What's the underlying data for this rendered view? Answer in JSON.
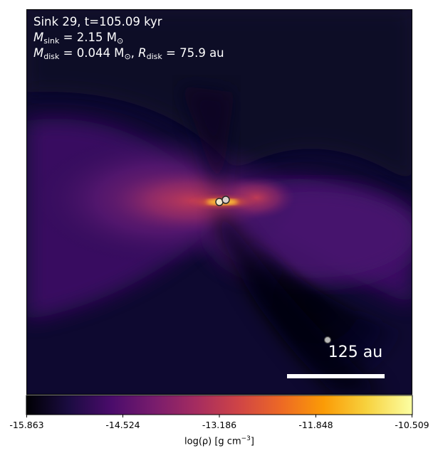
{
  "panel": {
    "title": "Sink 29, t=105.09 kyr",
    "sink_mass_symbol": "M",
    "sink_mass_sub": "sink",
    "sink_mass_value": " = 2.15 M",
    "sink_mass_unit_sub": "⊙",
    "disk_mass_symbol": "M",
    "disk_mass_sub": "disk",
    "disk_mass_value": " = 0.044 M",
    "disk_mass_unit_sub": "⊙",
    "disk_sep": ", ",
    "disk_radius_symbol": "R",
    "disk_radius_sub": "disk",
    "disk_radius_value": " = 75.9 au"
  },
  "scale_bar": {
    "label": "125 au"
  },
  "colorbar": {
    "tick_labels": [
      "-15.863",
      "-14.524",
      "-13.186",
      "-11.848",
      "-10.509"
    ],
    "label_main": "log(ρ) [g cm",
    "label_exp": "−3",
    "label_end": "]",
    "colormap": "inferno-like",
    "colors": [
      "#000004",
      "#1b0c41",
      "#4a0c6b",
      "#781c6d",
      "#a52c60",
      "#cf4446",
      "#ed6925",
      "#fb9b06",
      "#f7d13d",
      "#fcffa4"
    ]
  }
}
